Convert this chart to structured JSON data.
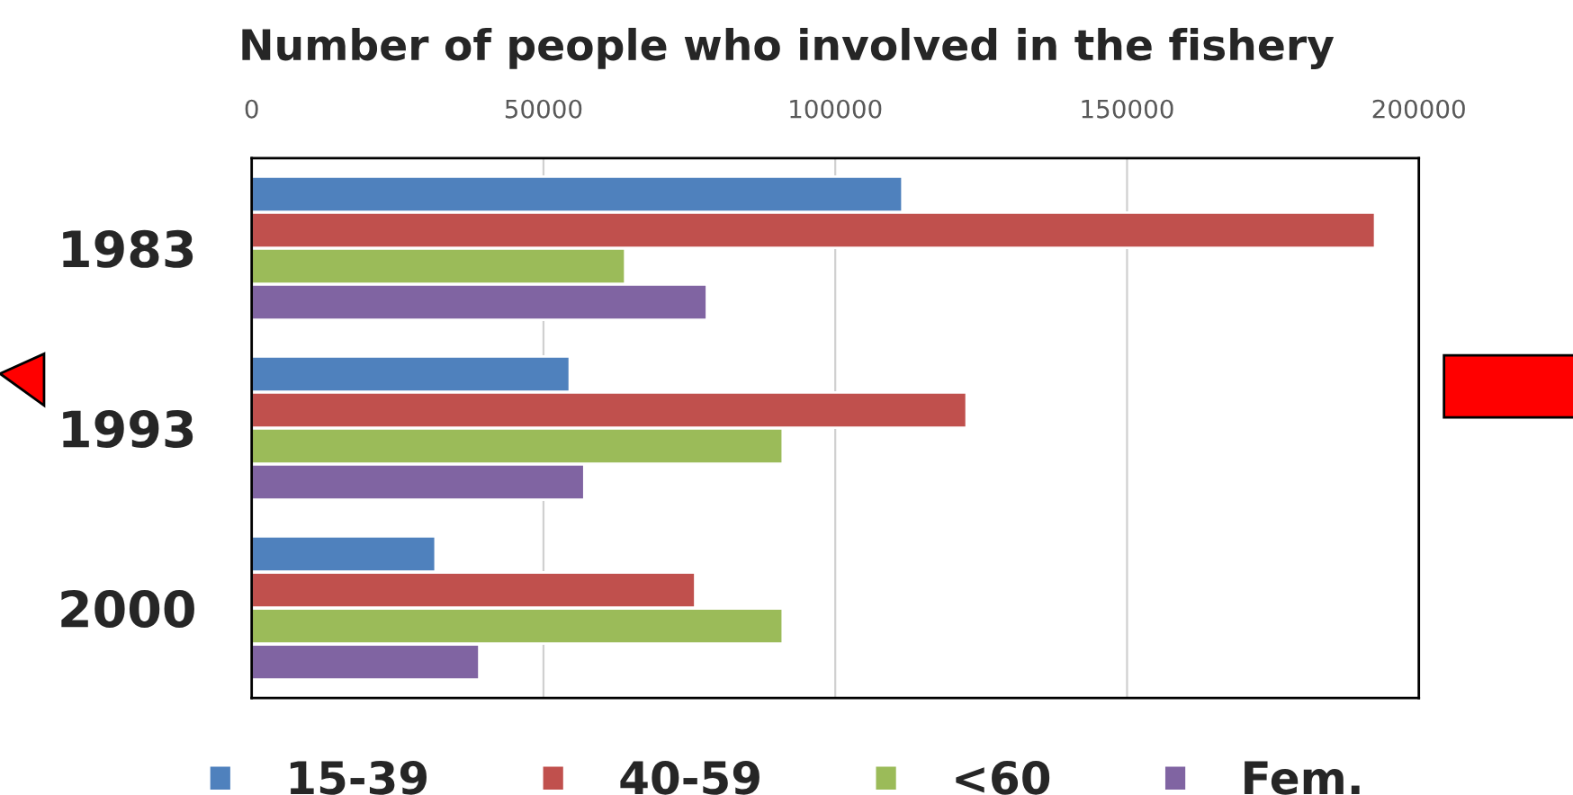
{
  "chart_data": {
    "type": "bar",
    "orientation": "horizontal",
    "title": "Number of people who involved in the fishery",
    "categories": [
      "1983",
      "1993",
      "2000"
    ],
    "series": [
      {
        "name": "15-39",
        "color": "#4f81bd",
        "values": [
          111500,
          54500,
          31500
        ]
      },
      {
        "name": "40-59",
        "color": "#c0504d",
        "values": [
          192500,
          122500,
          76000
        ]
      },
      {
        "name": "<60",
        "color": "#9bbb59",
        "values": [
          64000,
          91000,
          91000
        ]
      },
      {
        "name": "Fem.",
        "color": "#8064a2",
        "values": [
          78000,
          57000,
          39000
        ]
      }
    ],
    "xlim": [
      0,
      200000
    ],
    "xticks": [
      0,
      50000,
      100000,
      150000,
      200000
    ],
    "grid": "x",
    "legend": "bottom"
  }
}
